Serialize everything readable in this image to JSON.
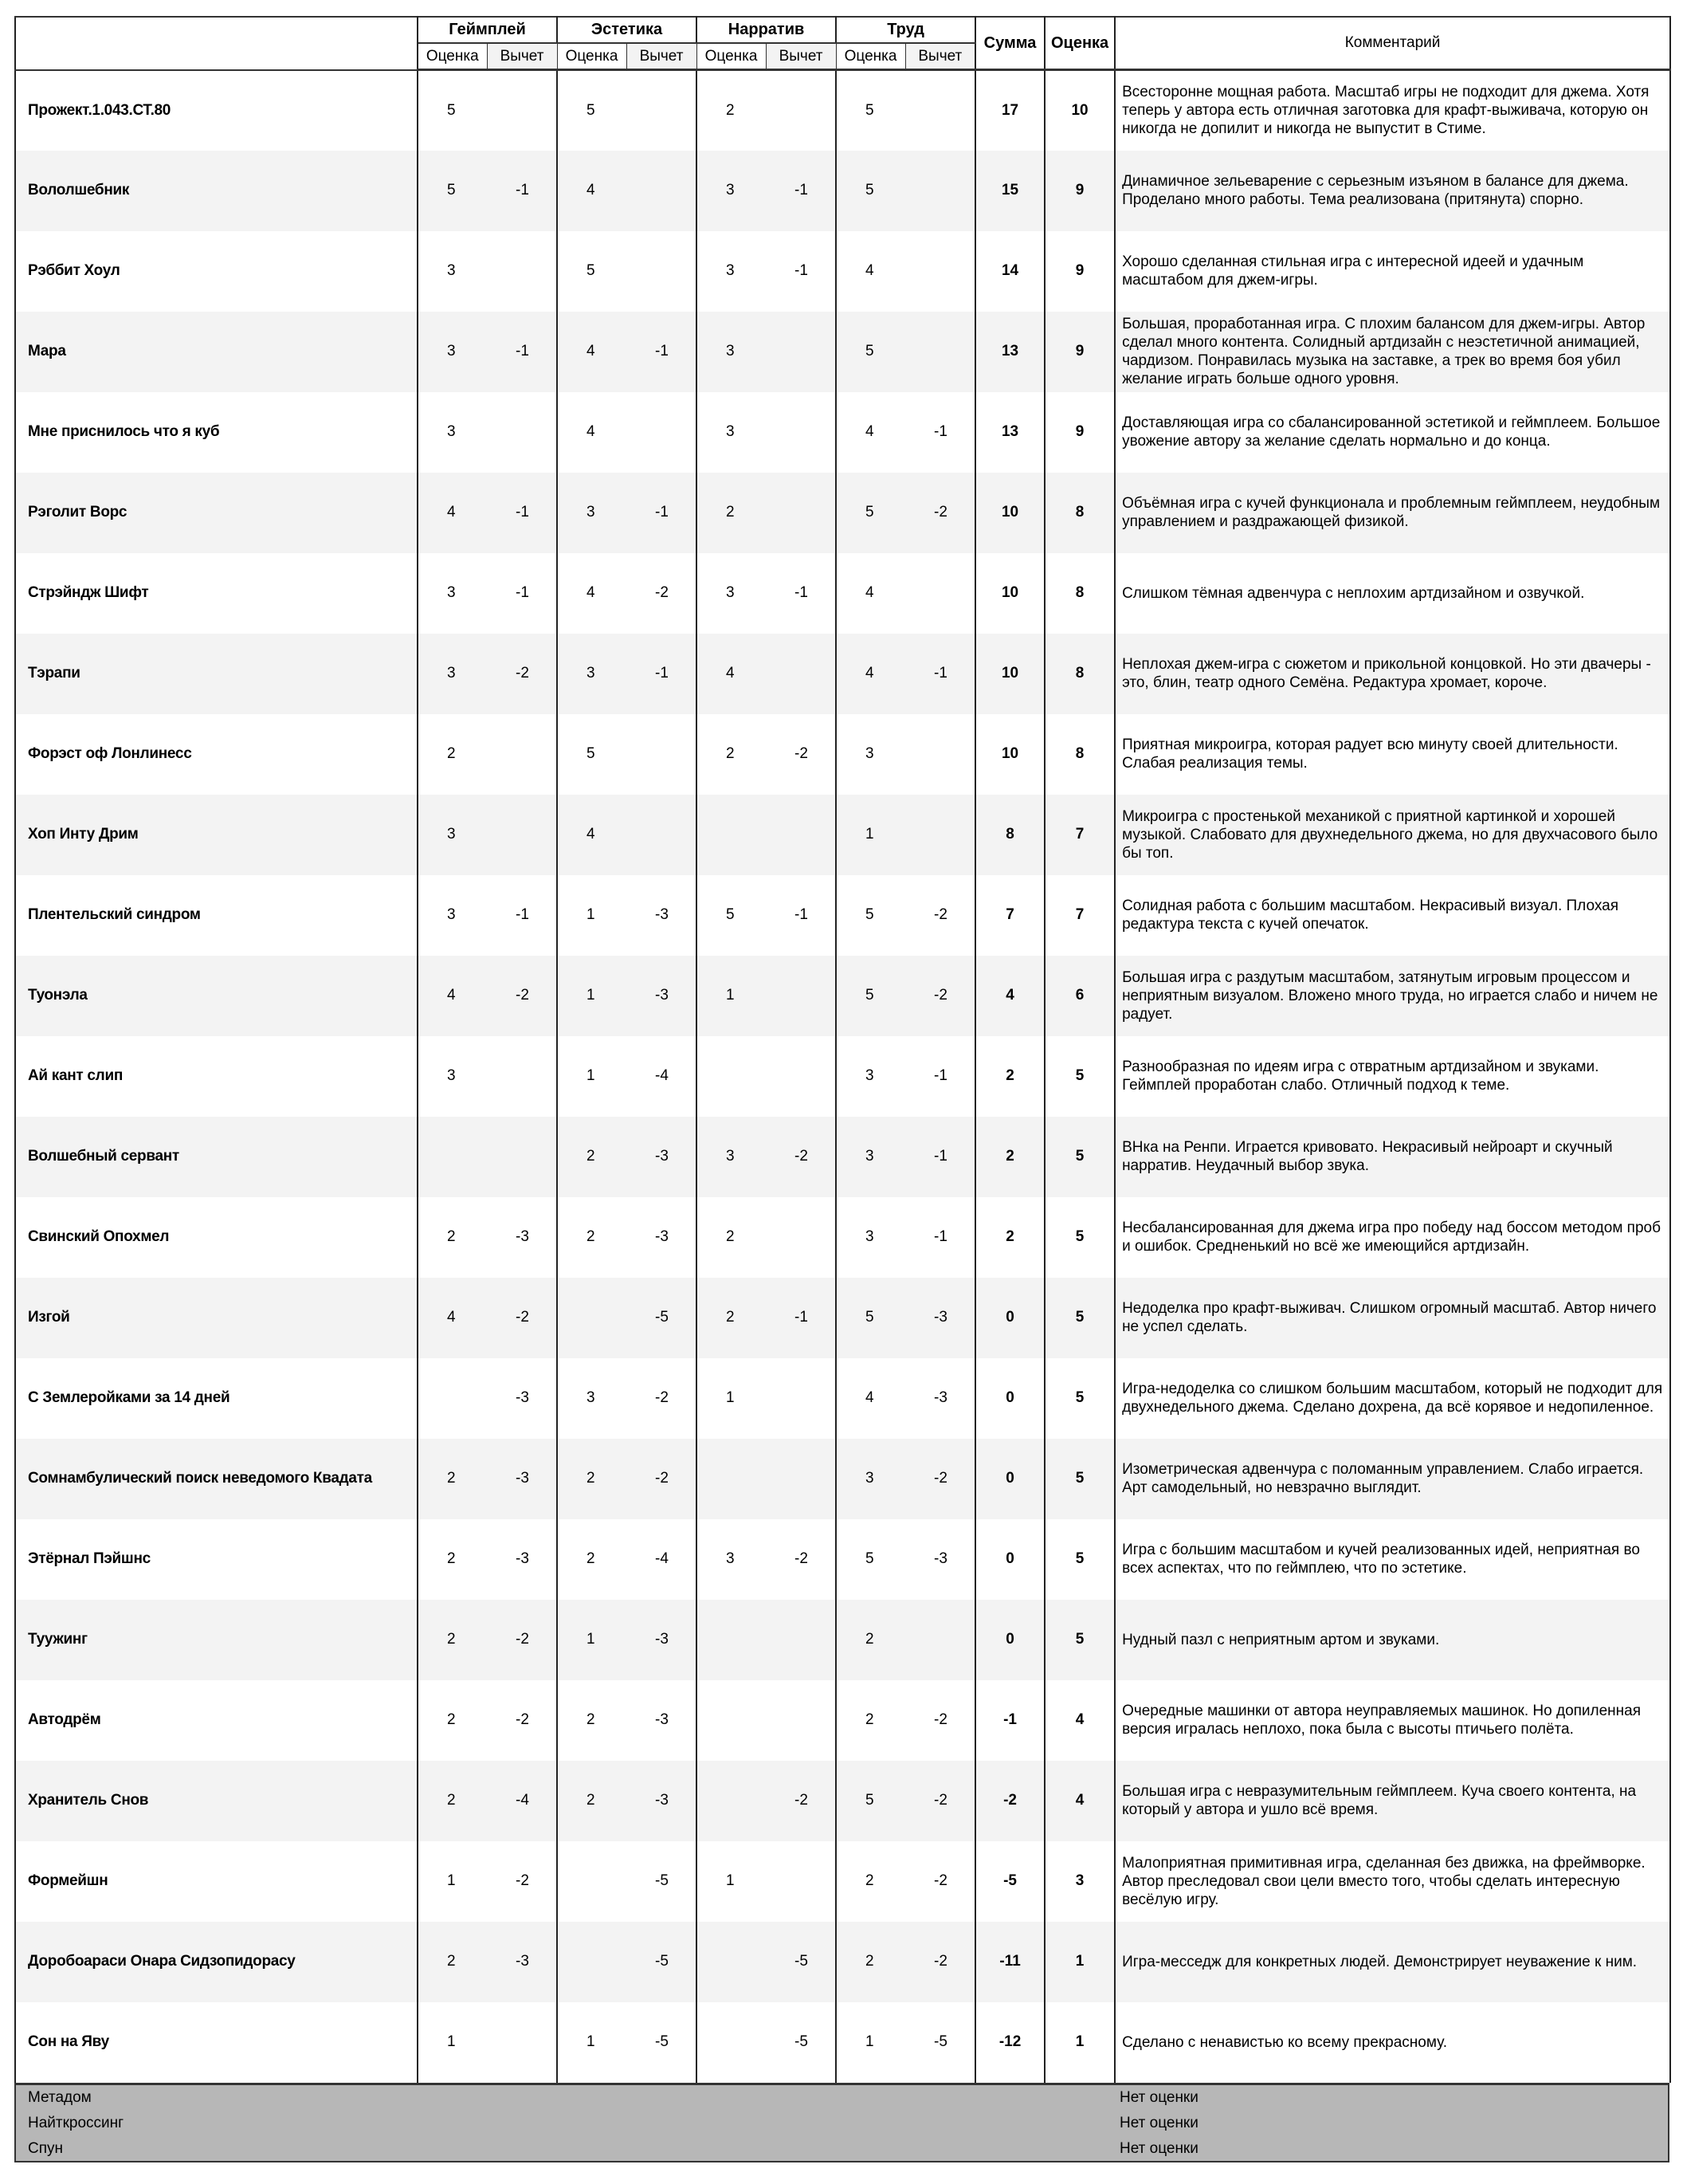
{
  "header": {
    "groups": [
      "Геймплей",
      "Эстетика",
      "Нарратив",
      "Труд"
    ],
    "sub_score": "Оценка",
    "sub_deduction": "Вычет",
    "sum": "Сумма",
    "score": "Оценка",
    "comment": "Комментарий"
  },
  "rows": [
    {
      "name": "Прожект.1.043.СТ.80",
      "v": [
        "5",
        "",
        "5",
        "",
        "2",
        "",
        "5",
        ""
      ],
      "sum": "17",
      "score": "10",
      "comment": "Всесторонне мощная работа. Масштаб игры не подходит для джема. Хотя теперь у автора есть отличная заготовка для крафт-выживача, которую он никогда не допилит и никогда не выпустит в Стиме."
    },
    {
      "name": "Вололшебник",
      "v": [
        "5",
        "-1",
        "4",
        "",
        "3",
        "-1",
        "5",
        ""
      ],
      "sum": "15",
      "score": "9",
      "comment": "Динамичное зельеварение с серьезным изъяном в балансе для джема. Проделано много работы. Тема реализована (притянута) спорно."
    },
    {
      "name": "Рэббит Хоул",
      "v": [
        "3",
        "",
        "5",
        "",
        "3",
        "-1",
        "4",
        ""
      ],
      "sum": "14",
      "score": "9",
      "comment": "Хорошо сделанная стильная игра с интересной идеей и удачным масштабом для джем-игры."
    },
    {
      "name": "Мара",
      "v": [
        "3",
        "-1",
        "4",
        "-1",
        "3",
        "",
        "5",
        ""
      ],
      "sum": "13",
      "score": "9",
      "comment": "Большая, проработанная игра. С плохим балансом для джем-игры. Автор сделал много контента. Солидный артдизайн с неэстетичной анимацией, чардизом. Понравилась музыка на заставке, а трек во время боя убил желание играть больше одного уровня."
    },
    {
      "name": "Мне приснилось что я куб",
      "v": [
        "3",
        "",
        "4",
        "",
        "3",
        "",
        "4",
        "-1"
      ],
      "sum": "13",
      "score": "9",
      "comment": "Доставляющая игра со сбалансированной эстетикой и геймплеем. Большое увожение автору за желание сделать нормально и до конца."
    },
    {
      "name": "Рэголит Ворс",
      "v": [
        "4",
        "-1",
        "3",
        "-1",
        "2",
        "",
        "5",
        "-2"
      ],
      "sum": "10",
      "score": "8",
      "comment": "Объёмная игра с кучей функционала и проблемным геймплеем, неудобным управлением и раздражающей физикой."
    },
    {
      "name": "Стрэйндж Шифт",
      "v": [
        "3",
        "-1",
        "4",
        "-2",
        "3",
        "-1",
        "4",
        ""
      ],
      "sum": "10",
      "score": "8",
      "comment": "Слишком тёмная адвенчура с неплохим артдизайном и озвучкой."
    },
    {
      "name": "Тэрапи",
      "v": [
        "3",
        "-2",
        "3",
        "-1",
        "4",
        "",
        "4",
        "-1"
      ],
      "sum": "10",
      "score": "8",
      "comment": "Неплохая джем-игра с сюжетом и прикольной концовкой. Но эти двачеры - это, блин, театр одного Семёна. Редактура хромает, короче."
    },
    {
      "name": "Форэст оф Лонлинесс",
      "v": [
        "2",
        "",
        "5",
        "",
        "2",
        "-2",
        "3",
        ""
      ],
      "sum": "10",
      "score": "8",
      "comment": "Приятная микроигра, которая радует всю минуту своей длительности. Слабая реализация темы."
    },
    {
      "name": "Хоп Инту Дрим",
      "v": [
        "3",
        "",
        "4",
        "",
        "",
        "",
        "1",
        ""
      ],
      "sum": "8",
      "score": "7",
      "comment": "Микроигра с простенькой механикой с приятной картинкой и хорошей музыкой. Слабовато для двухнедельного джема, но для двухчасового было бы топ."
    },
    {
      "name": "Плентельский синдром",
      "v": [
        "3",
        "-1",
        "1",
        "-3",
        "5",
        "-1",
        "5",
        "-2"
      ],
      "sum": "7",
      "score": "7",
      "comment": "Солидная работа с большим масштабом. Некрасивый визуал. Плохая редактура текста с кучей опечаток."
    },
    {
      "name": "Туонэла",
      "v": [
        "4",
        "-2",
        "1",
        "-3",
        "1",
        "",
        "5",
        "-2"
      ],
      "sum": "4",
      "score": "6",
      "comment": "Большая игра с раздутым масштабом, затянутым игровым процессом и неприятным визуалом. Вложено много труда, но играется слабо и ничем не радует."
    },
    {
      "name": "Ай кант слип",
      "v": [
        "3",
        "",
        "1",
        "-4",
        "",
        "",
        "3",
        "-1"
      ],
      "sum": "2",
      "score": "5",
      "comment": "Разнообразная по идеям игра с отвратным артдизайном и звуками. Геймплей проработан слабо. Отличный подход к теме."
    },
    {
      "name": "Волшебный сервант",
      "v": [
        "",
        "",
        "2",
        "-3",
        "3",
        "-2",
        "3",
        "-1"
      ],
      "sum": "2",
      "score": "5",
      "comment": "ВНка на Ренпи. Играется кривовато. Некрасивый нейроарт и скучный нарратив. Неудачный выбор звука."
    },
    {
      "name": "Свинский Опохмел",
      "v": [
        "2",
        "-3",
        "2",
        "-3",
        "2",
        "",
        "3",
        "-1"
      ],
      "sum": "2",
      "score": "5",
      "comment": "Несбалансированная для джема игра про победу над боссом методом проб и ошибок. Средненький но всё же имеющийся артдизайн."
    },
    {
      "name": "Изгой",
      "v": [
        "4",
        "-2",
        "",
        "-5",
        "2",
        "-1",
        "5",
        "-3"
      ],
      "sum": "0",
      "score": "5",
      "comment": "Недоделка про крафт-выживач. Слишком огромный масштаб. Автор ничего не успел сделать."
    },
    {
      "name": "С Землеройками за 14 дней",
      "v": [
        "",
        "-3",
        "3",
        "-2",
        "1",
        "",
        "4",
        "-3"
      ],
      "sum": "0",
      "score": "5",
      "comment": "Игра-недоделка со слишком большим масштабом, который не подходит для двухнедельного джема. Сделано дохрена, да всё корявое и недопиленное."
    },
    {
      "name": "Сомнамбулический поиск неведомого Квадата",
      "v": [
        "2",
        "-3",
        "2",
        "-2",
        "",
        "",
        "3",
        "-2"
      ],
      "sum": "0",
      "score": "5",
      "comment": "Изометрическая адвенчура с поломанным управлением. Слабо играется. Арт самодельный, но невзрачно выглядит."
    },
    {
      "name": "Этёрнал Пэйшнс",
      "v": [
        "2",
        "-3",
        "2",
        "-4",
        "3",
        "-2",
        "5",
        "-3"
      ],
      "sum": "0",
      "score": "5",
      "comment": "Игра с большим масштабом и кучей реализованных идей, неприятная во всех аспектах, что по геймплею, что по эстетике."
    },
    {
      "name": "Туужинг",
      "v": [
        "2",
        "-2",
        "1",
        "-3",
        "",
        "",
        "2",
        ""
      ],
      "sum": "0",
      "score": "5",
      "comment": "Нудный пазл с неприятным артом и звуками."
    },
    {
      "name": "Автодрём",
      "v": [
        "2",
        "-2",
        "2",
        "-3",
        "",
        "",
        "2",
        "-2"
      ],
      "sum": "-1",
      "score": "4",
      "comment": "Очередные машинки от автора неуправляемых машинок. Но допиленная версия игралась неплохо, пока была с высоты птичьего полёта."
    },
    {
      "name": "Хранитель Снов",
      "v": [
        "2",
        "-4",
        "2",
        "-3",
        "",
        "-2",
        "5",
        "-2"
      ],
      "sum": "-2",
      "score": "4",
      "comment": "Большая игра с невразумительным геймплеем. Куча своего контента, на который у автора и ушло всё время."
    },
    {
      "name": "Формейшн",
      "v": [
        "1",
        "-2",
        "",
        "-5",
        "1",
        "",
        "2",
        "-2"
      ],
      "sum": "-5",
      "score": "3",
      "comment": "Малоприятная примитивная игра, сделанная без движка, на фреймворке. Автор преследовал свои цели вместо того, чтобы сделать интересную весёлую игру."
    },
    {
      "name": "Доробоараси Онара Сидзопидорасу",
      "v": [
        "2",
        "-3",
        "",
        "-5",
        "",
        "-5",
        "2",
        "-2"
      ],
      "sum": "-11",
      "score": "1",
      "comment": "Игра-месседж для конкретных людей. Демонстрирует неуважение к ним."
    },
    {
      "name": "Сон на Яву",
      "v": [
        "1",
        "",
        "1",
        "-5",
        "",
        "-5",
        "1",
        "-5"
      ],
      "sum": "-12",
      "score": "1",
      "comment": "Сделано с ненавистью ко всему прекрасному."
    }
  ],
  "unrated": [
    {
      "name": "Метадом",
      "status": "Нет оценки"
    },
    {
      "name": "Найткроссинг",
      "status": "Нет оценки"
    },
    {
      "name": "Спун",
      "status": "Нет оценки"
    }
  ],
  "colors": {
    "alt_row": "#f3f3f3",
    "footer": "#b7b7b7",
    "border": "#222222"
  }
}
